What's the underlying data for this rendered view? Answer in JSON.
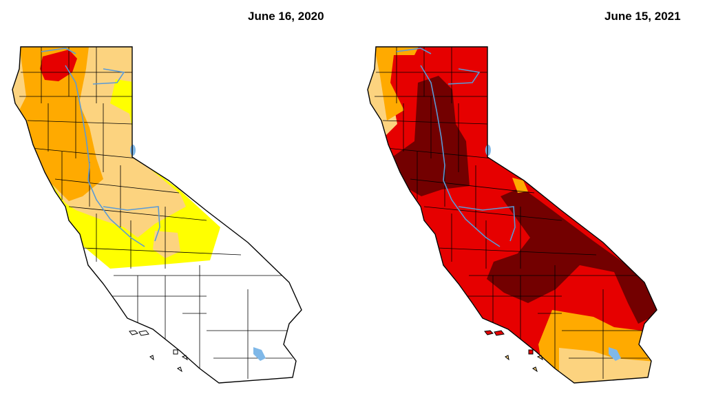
{
  "maps": [
    {
      "date": "June 16, 2020",
      "regions": {
        "d0": "#ffff00",
        "d1": "#fcd37f",
        "d2": "#ffaa00",
        "d3": "#e60000",
        "none": "#ffffff"
      }
    },
    {
      "date": "June 15, 2021",
      "regions": {
        "d1": "#fcd37f",
        "d2": "#ffaa00",
        "d3": "#e60000",
        "d4": "#730000"
      }
    }
  ],
  "colors": {
    "water": "#7fb8e8",
    "border": "#000000",
    "river": "#5a9ad6"
  }
}
